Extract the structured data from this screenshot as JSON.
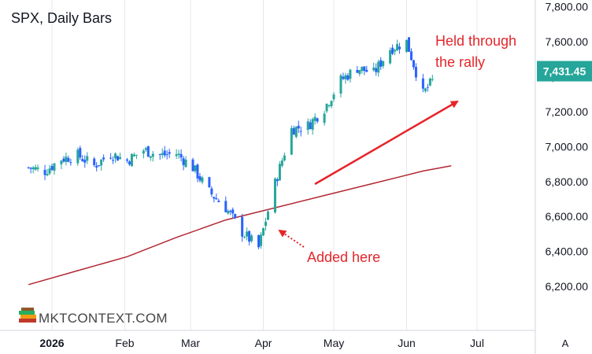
{
  "colors": {
    "up": "#26a69a",
    "down": "#2962ff",
    "ma": "#b22833",
    "annotation": "#e4252a",
    "grid": "#e6e8ed",
    "price_tag_bg": "#26a69a",
    "price_tag_text": "#ffffff"
  },
  "chart_data": {
    "type": "candlestick",
    "title": "SPX, Daily Bars",
    "x_ticks": [
      "2026",
      "Feb",
      "Mar",
      "Apr",
      "May",
      "Jun",
      "Jul"
    ],
    "y_ticks": [
      "7,800.00",
      "7,600.00",
      "7,400.00",
      "7,200.00",
      "7,000.00",
      "6,800.00",
      "6,600.00",
      "6,400.00",
      "6,200.00"
    ],
    "ylim": [
      6020,
      7830
    ],
    "last_price": 7431.45,
    "last_price_label": "7,431.45",
    "grid": "vertical only",
    "close_series": [
      {
        "date": "2025-12-22",
        "close": 6880
      },
      {
        "date": "2025-12-29",
        "close": 6860
      },
      {
        "date": "2026-01-05",
        "close": 6930
      },
      {
        "date": "2026-01-12",
        "close": 6950
      },
      {
        "date": "2026-01-19",
        "close": 6890
      },
      {
        "date": "2026-01-26",
        "close": 6960
      },
      {
        "date": "2026-02-02",
        "close": 6920
      },
      {
        "date": "2026-02-09",
        "close": 6980
      },
      {
        "date": "2026-02-16",
        "close": 6950
      },
      {
        "date": "2026-02-23",
        "close": 6960
      },
      {
        "date": "2026-03-02",
        "close": 6880
      },
      {
        "date": "2026-03-09",
        "close": 6740
      },
      {
        "date": "2026-03-16",
        "close": 6650
      },
      {
        "date": "2026-03-23",
        "close": 6510
      },
      {
        "date": "2026-03-30",
        "close": 6420
      },
      {
        "date": "2026-04-06",
        "close": 6790
      },
      {
        "date": "2026-04-13",
        "close": 7100
      },
      {
        "date": "2026-04-20",
        "close": 7120
      },
      {
        "date": "2026-04-27",
        "close": 7220
      },
      {
        "date": "2026-05-04",
        "close": 7380
      },
      {
        "date": "2026-05-11",
        "close": 7450
      },
      {
        "date": "2026-05-18",
        "close": 7420
      },
      {
        "date": "2026-05-25",
        "close": 7560
      },
      {
        "date": "2026-06-01",
        "close": 7600
      },
      {
        "date": "2026-06-08",
        "close": 7300
      },
      {
        "date": "2026-06-15",
        "close": 7431
      }
    ],
    "moving_average": [
      {
        "date": "2025-12-22",
        "value": 6210
      },
      {
        "date": "2026-01-12",
        "value": 6290
      },
      {
        "date": "2026-02-02",
        "value": 6370
      },
      {
        "date": "2026-02-23",
        "value": 6480
      },
      {
        "date": "2026-03-16",
        "value": 6580
      },
      {
        "date": "2026-04-06",
        "value": 6650
      },
      {
        "date": "2026-04-27",
        "value": 6720
      },
      {
        "date": "2026-05-18",
        "value": 6790
      },
      {
        "date": "2026-06-08",
        "value": 6860
      },
      {
        "date": "2026-06-20",
        "value": 6890
      }
    ]
  },
  "annotations": {
    "held": [
      "Held through",
      "the rally"
    ],
    "added": "Added here"
  },
  "brand": {
    "text": "MKTCONTEXT.COM",
    "icon": "stacked-books-icon"
  },
  "axis_corner": {
    "label": "A"
  }
}
